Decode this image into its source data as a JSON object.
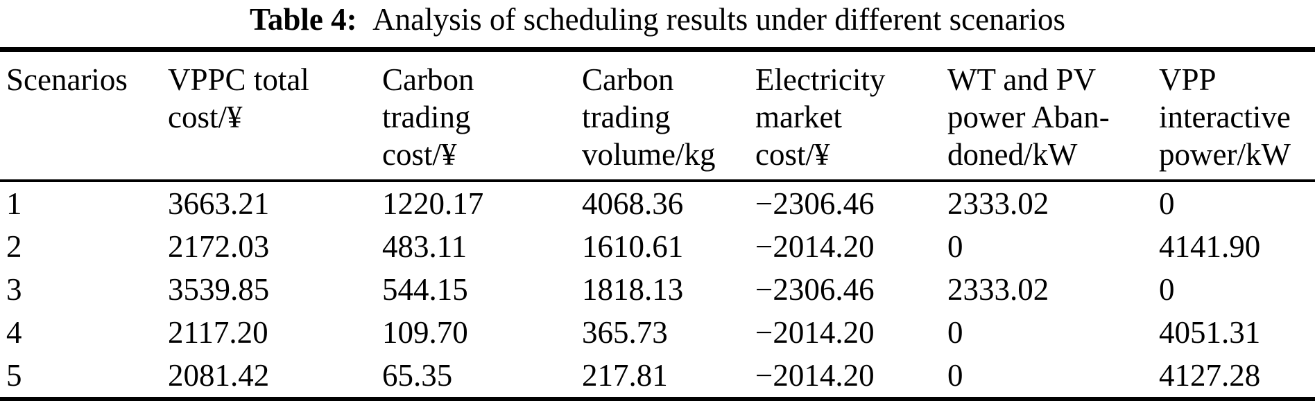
{
  "caption": {
    "label": "Table 4:",
    "text": "Analysis of scheduling results under different scenarios"
  },
  "colors": {
    "background": "#ffffff",
    "text": "#000000",
    "rule": "#000000"
  },
  "table": {
    "columns": [
      {
        "lines": [
          "Scenarios",
          "",
          ""
        ]
      },
      {
        "lines": [
          "VPPC total",
          "cost/¥",
          ""
        ]
      },
      {
        "lines": [
          "Carbon",
          "trading",
          "cost/¥"
        ]
      },
      {
        "lines": [
          "Carbon",
          "trading",
          "volume/kg"
        ]
      },
      {
        "lines": [
          "Electricity",
          "market",
          "cost/¥"
        ]
      },
      {
        "lines": [
          "WT and PV",
          "power Aban-",
          "doned/kW"
        ]
      },
      {
        "lines": [
          "VPP",
          "interactive",
          "power/kW"
        ]
      }
    ],
    "rows": [
      [
        "1",
        "3663.21",
        "1220.17",
        "4068.36",
        "−2306.46",
        "2333.02",
        "0"
      ],
      [
        "2",
        "2172.03",
        "483.11",
        "1610.61",
        "−2014.20",
        "0",
        "4141.90"
      ],
      [
        "3",
        "3539.85",
        "544.15",
        "1818.13",
        "−2306.46",
        "2333.02",
        "0"
      ],
      [
        "4",
        "2117.20",
        "109.70",
        "365.73",
        "−2014.20",
        "0",
        "4051.31"
      ],
      [
        "5",
        "2081.42",
        "65.35",
        "217.81",
        "−2014.20",
        "0",
        "4127.28"
      ]
    ]
  }
}
